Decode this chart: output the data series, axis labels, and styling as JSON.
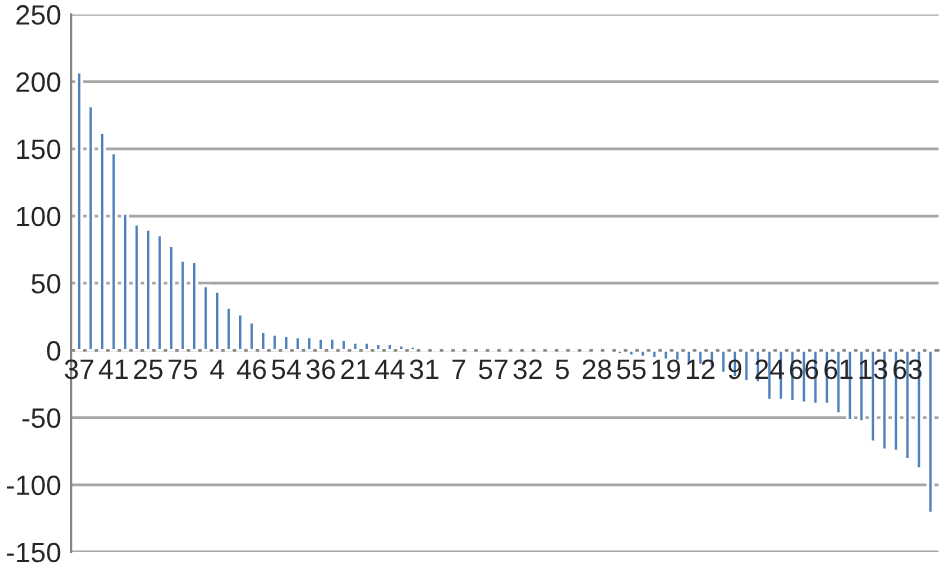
{
  "chart_data": {
    "type": "bar",
    "categories": [
      "37",
      null,
      null,
      "41",
      null,
      null,
      "25",
      null,
      null,
      "75",
      null,
      null,
      "4",
      null,
      null,
      "46",
      null,
      null,
      "54",
      null,
      null,
      "36",
      null,
      null,
      "21",
      null,
      null,
      "44",
      null,
      null,
      "31",
      null,
      null,
      "7",
      null,
      null,
      "57",
      null,
      null,
      "32",
      null,
      null,
      "5",
      null,
      null,
      "28",
      null,
      null,
      "55",
      null,
      null,
      "19",
      null,
      null,
      "12",
      null,
      null,
      "9",
      null,
      null,
      "24",
      null,
      null,
      "66",
      null,
      null,
      "61",
      null,
      null,
      "13",
      null,
      null,
      "63",
      null,
      null
    ],
    "values": [
      207,
      182,
      162,
      147,
      102,
      94,
      90,
      86,
      78,
      67,
      66,
      48,
      44,
      32,
      27,
      21,
      14,
      12,
      11,
      10,
      10,
      9,
      9,
      8,
      6,
      6,
      5,
      5,
      4,
      3,
      2,
      1,
      1,
      1,
      1,
      1,
      1,
      1,
      1,
      1,
      1,
      1,
      1,
      1,
      1,
      -1,
      -2,
      -3,
      -4,
      -5,
      -6,
      -7,
      -8,
      -10,
      -11,
      -13,
      -17,
      -20,
      -23,
      -24,
      -37,
      -37,
      -38,
      -39,
      -40,
      -40,
      -47,
      -52,
      -53,
      -68,
      -74,
      -75,
      -81,
      -88,
      -121
    ],
    "color": "#4f81bd",
    "ylim": [
      -150,
      250
    ],
    "yticks": [
      -150,
      -100,
      -50,
      0,
      50,
      100,
      150,
      200,
      250
    ],
    "grid": "y",
    "legend": false
  }
}
